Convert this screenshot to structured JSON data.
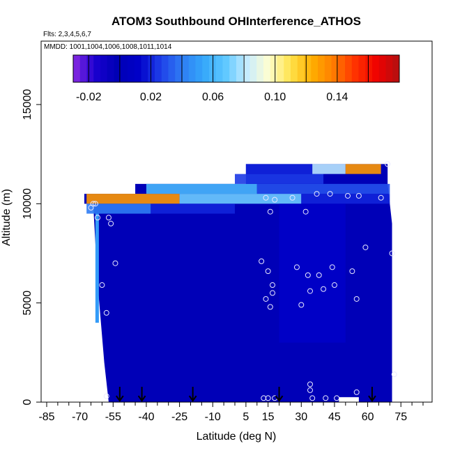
{
  "chart_data": {
    "type": "heatmap",
    "title": "ATOM3 Southbound OHInterference_ATHOS",
    "subtitle_flights": "Flts: 2,3,4,5,6,7",
    "subtitle_dates": "MMDD: 1001,1004,1006,1008,1011,1014",
    "xlabel": "Latitude (deg N)",
    "ylabel": "Altitude (m)",
    "xlim": [
      -85,
      85
    ],
    "ylim": [
      0,
      17500
    ],
    "x_ticks": [
      -85,
      -70,
      -55,
      -40,
      -25,
      -10,
      5,
      15,
      30,
      45,
      60,
      75
    ],
    "x_minor_ticks": [
      -80,
      -75,
      -65,
      -60,
      -50,
      -45,
      -35,
      -30,
      -20,
      -15,
      -5,
      0,
      10,
      20,
      25,
      35,
      40,
      50,
      55,
      65,
      70,
      80,
      85
    ],
    "y_ticks": [
      0,
      5000,
      10000,
      15000
    ],
    "grid": false,
    "colorbar": {
      "placement": "top",
      "tick_labels": [
        "-0.02",
        "0.02",
        "0.06",
        "0.10",
        "0.14"
      ],
      "tick_values": [
        -0.02,
        0.02,
        0.06,
        0.1,
        0.14
      ],
      "range": [
        -0.03,
        0.18
      ],
      "colors": [
        "#8a2be2",
        "#1a00d0",
        "#0000b4",
        "#0000c8",
        "#1e3ee8",
        "#2e7cf4",
        "#35a8fa",
        "#5ec8ff",
        "#c8ecff",
        "#ffffd0",
        "#ffe24a",
        "#ffae00",
        "#ff7a00",
        "#ff3000",
        "#ee0000",
        "#b21010"
      ]
    },
    "field": {
      "background_value": 0.0,
      "ranges": [
        {
          "lat": [
            -67,
            -25
          ],
          "alt": [
            10000,
            10500
          ],
          "value": 0.13
        },
        {
          "lat": [
            -25,
            30
          ],
          "alt": [
            10000,
            10500
          ],
          "value": 0.07
        },
        {
          "lat": [
            30,
            70
          ],
          "alt": [
            10000,
            10500
          ],
          "value": 0.02
        },
        {
          "lat": [
            -67,
            -38
          ],
          "alt": [
            9500,
            10000
          ],
          "value": 0.04
        },
        {
          "lat": [
            -38,
            0
          ],
          "alt": [
            9500,
            10000
          ],
          "value": 0.02
        },
        {
          "lat": [
            -40,
            10
          ],
          "alt": [
            10500,
            11000
          ],
          "value": 0.06
        },
        {
          "lat": [
            10,
            70
          ],
          "alt": [
            10500,
            11000
          ],
          "value": 0.03
        },
        {
          "lat": [
            0,
            40
          ],
          "alt": [
            11000,
            11500
          ],
          "value": 0.025
        },
        {
          "lat": [
            5,
            35
          ],
          "alt": [
            11500,
            12000
          ],
          "value": 0.02
        },
        {
          "lat": [
            35,
            50
          ],
          "alt": [
            11500,
            12000
          ],
          "value": 0.08
        },
        {
          "lat": [
            50,
            66
          ],
          "alt": [
            11500,
            12000
          ],
          "value": 0.13
        },
        {
          "lat": [
            20,
            50
          ],
          "alt": [
            3000,
            10000
          ],
          "value": 0.012
        }
      ]
    },
    "observation_points": [
      [
        -65,
        9800
      ],
      [
        -63,
        10000
      ],
      [
        -62,
        9300
      ],
      [
        -57,
        9300
      ],
      [
        -56,
        9000
      ],
      [
        -54,
        7000
      ],
      [
        -60,
        5900
      ],
      [
        -58,
        4500
      ],
      [
        -58,
        300
      ],
      [
        12,
        7100
      ],
      [
        14,
        10300
      ],
      [
        14,
        5200
      ],
      [
        15,
        6600
      ],
      [
        16,
        9600
      ],
      [
        17,
        5900
      ],
      [
        16,
        4800
      ],
      [
        17,
        5500
      ],
      [
        18,
        10200
      ],
      [
        13,
        200
      ],
      [
        15,
        200
      ],
      [
        18,
        200
      ],
      [
        26,
        10300
      ],
      [
        28,
        6800
      ],
      [
        30,
        4900
      ],
      [
        32,
        9600
      ],
      [
        33,
        6400
      ],
      [
        34,
        5600
      ],
      [
        34,
        900
      ],
      [
        34,
        600
      ],
      [
        35,
        200
      ],
      [
        37,
        10500
      ],
      [
        38,
        6400
      ],
      [
        40,
        5700
      ],
      [
        41,
        200
      ],
      [
        43,
        10500
      ],
      [
        44,
        6800
      ],
      [
        45,
        5900
      ],
      [
        46,
        200
      ],
      [
        51,
        10400
      ],
      [
        53,
        6600
      ],
      [
        55,
        5200
      ],
      [
        55,
        500
      ],
      [
        56,
        10400
      ],
      [
        59,
        7800
      ],
      [
        66,
        10300
      ],
      [
        69,
        12000
      ],
      [
        71,
        7500
      ],
      [
        72,
        1400
      ],
      [
        -64,
        10000
      ]
    ],
    "flight_markers_lat": [
      -52,
      -42,
      -19,
      20,
      62
    ]
  }
}
